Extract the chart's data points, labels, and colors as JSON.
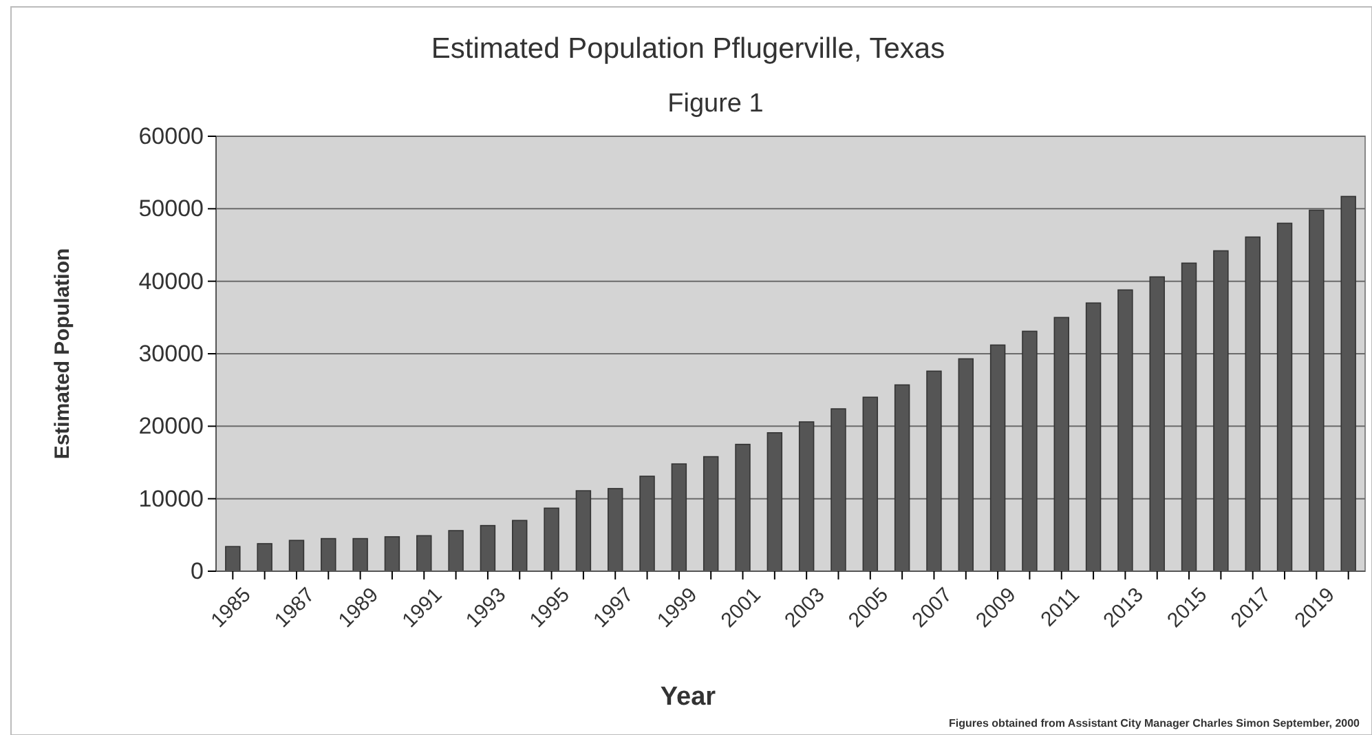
{
  "chart_data": {
    "type": "bar",
    "title": "Estimated Population Pflugerville, Texas",
    "subtitle": "Figure 1",
    "xlabel": "Year",
    "ylabel": "Estimated Population",
    "categories": [
      "1985",
      null,
      "1987",
      null,
      "1989",
      null,
      "1991",
      null,
      "1993",
      null,
      "1995",
      null,
      "1997",
      null,
      "1999",
      null,
      "2001",
      null,
      "2003",
      null,
      "2005",
      null,
      "2007",
      null,
      "2009",
      null,
      "2011",
      null,
      "2013",
      null,
      "2015",
      null,
      "2017",
      null,
      "2019",
      null
    ],
    "values": [
      3400,
      3800,
      4250,
      4500,
      4500,
      4750,
      4900,
      5600,
      6300,
      7000,
      8700,
      11100,
      11400,
      13100,
      14800,
      15800,
      17500,
      19100,
      20600,
      22400,
      24000,
      25700,
      27600,
      29300,
      31200,
      33100,
      35000,
      37000,
      38800,
      40600,
      42500,
      44200,
      46100,
      48000,
      49800,
      51700
    ],
    "color": "#555555",
    "ylim": [
      0,
      60000
    ],
    "yticks": [
      0,
      10000,
      20000,
      30000,
      40000,
      50000,
      60000
    ],
    "grid": "y",
    "annotations": [
      "Figures obtained from Assistant City Manager Charles Simon September, 2000"
    ]
  }
}
